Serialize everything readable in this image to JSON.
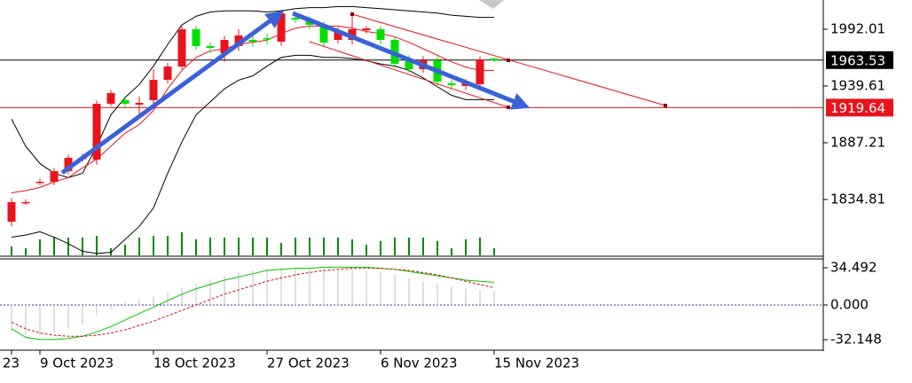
{
  "chart_data": {
    "type": "candlestick",
    "categories": [
      "23",
      null,
      "9 Oct 2023",
      null,
      null,
      null,
      null,
      null,
      null,
      null,
      "18 Oct 2023",
      null,
      null,
      null,
      null,
      null,
      null,
      null,
      "27 Oct 2023",
      null,
      null,
      null,
      null,
      null,
      null,
      null,
      "6 Nov 2023",
      null,
      null,
      null,
      null,
      null,
      null,
      null,
      "15 Nov 2023"
    ],
    "open": [
      1814.3,
      1832.4,
      1851.2,
      1851.2,
      1861.0,
      1873.3,
      1871.6,
      1923.2,
      1926.5,
      1922.4,
      1926.5,
      1945.3,
      1957.6,
      1992.0,
      1976.5,
      1969.9,
      1976.5,
      1982.2,
      1983.8,
      1980.5,
      2002.6,
      2001.0,
      1996.1,
      1982.2,
      1982.2,
      1991.2,
      1992.0,
      1982.2,
      1964.2,
      1955.2,
      1963.3,
      1942.1,
      1939.6,
      1941.2,
      1965.0
    ],
    "high": [
      1836,
      1835,
      1854,
      1864,
      1876,
      1877,
      1926,
      1936,
      1929,
      1930,
      1955,
      1961,
      1995,
      1995,
      1980,
      1986,
      1992,
      1986,
      1988,
      2010,
      2006,
      2004,
      1999,
      1994,
      2005.9,
      1995,
      1995,
      1985,
      1968,
      1967,
      1967,
      1945,
      1946,
      1967,
      1966
    ],
    "low": [
      1810,
      1830,
      1848,
      1848,
      1858,
      1870,
      1867,
      1921,
      1920,
      1914,
      1923,
      1942,
      1955,
      1973,
      1970,
      1962,
      1972,
      1976,
      1978,
      1977,
      1998,
      1992,
      1976,
      1979,
      1978,
      1988,
      1978,
      1956,
      1952,
      1952,
      1940,
      1937,
      1936,
      1938,
      1962
    ],
    "close": [
      1832.4,
      1832.4,
      1851.2,
      1861.0,
      1873.3,
      1873.3,
      1923.2,
      1933.1,
      1923.2,
      1924.0,
      1945.3,
      1957.6,
      1992.0,
      1976.5,
      1974.8,
      1982.2,
      1986.3,
      1980.5,
      1983.0,
      2006.7,
      2001.0,
      1996.1,
      1979.7,
      1990.4,
      1992.0,
      1992.8,
      1982.2,
      1960.1,
      1955.2,
      1963.3,
      1943.7,
      1940.4,
      1943.7,
      1964.2,
      1963.3
    ],
    "up_color": "#e8141c",
    "down_color": "#00e000",
    "bands": [
      {
        "color": "#000000",
        "values": [
          1909,
          1884,
          1868,
          1859,
          1855,
          1859,
          1884,
          1913,
          1929,
          1941,
          1958,
          1978,
          1996,
          2004,
          2008,
          2009,
          2009,
          2009,
          2008,
          2009,
          2011,
          2012,
          2012,
          2013,
          2013,
          2012,
          2011,
          2010,
          2009,
          2008,
          2007,
          2005,
          2004,
          2003,
          2003
        ]
      },
      {
        "color": "#e8141c",
        "values": [
          1841,
          1843,
          1846,
          1851,
          1855,
          1864,
          1872,
          1884,
          1896,
          1904,
          1917,
          1937,
          1954,
          1966,
          1972,
          1974,
          1978,
          1980,
          1982,
          1988,
          1993,
          1995,
          1995,
          1995,
          1993,
          1990,
          1988,
          1985,
          1980,
          1974,
          1968,
          1962,
          1957,
          1954,
          1954
        ]
      },
      {
        "color": "#000000",
        "values": [
          1800,
          1802,
          1805,
          1800,
          1794,
          1787,
          1785,
          1786,
          1798,
          1810,
          1827,
          1859,
          1888,
          1913,
          1925,
          1937,
          1945,
          1949,
          1958,
          1966,
          1968,
          1968,
          1966,
          1966,
          1965,
          1963,
          1960,
          1958,
          1954,
          1947,
          1939,
          1931,
          1927,
          1927,
          1927
        ]
      }
    ],
    "ylim": [
      1781.6,
      2019.03
    ],
    "yticks": [
      1992.01,
      1939.61,
      1887.21,
      1834.81
    ],
    "price_lines": [
      {
        "value": 1963.53,
        "color": "#000000"
      },
      {
        "value": 1919.64,
        "color": "#e8141c"
      }
    ],
    "volume": {
      "color": "#008c00",
      "ylim": [
        0,
        100
      ],
      "values": [
        10,
        8,
        18,
        20,
        20,
        20,
        22,
        8,
        12,
        20,
        22,
        22,
        26,
        18,
        20,
        20,
        20,
        20,
        20,
        14,
        20,
        20,
        20,
        20,
        18,
        12,
        16,
        20,
        20,
        20,
        16,
        8,
        18,
        20,
        8
      ]
    },
    "macd": {
      "ylim": [
        -41.9,
        42.7
      ],
      "yticks": [
        34.492,
        {
          "value": 0,
          "label": "0.000"
        },
        -32.148
      ],
      "histogram": {
        "color": "#c0c0c0",
        "values": [
          -25,
          -27,
          -28,
          -25,
          -22,
          -18,
          -10,
          -4,
          3,
          5,
          8,
          12,
          16,
          20,
          24,
          27,
          30,
          32,
          33,
          34,
          34,
          34,
          33,
          33,
          33,
          32,
          30,
          28,
          25,
          22,
          20,
          17,
          15,
          14,
          13
        ]
      },
      "lines": [
        {
          "color": "#00c800",
          "values": [
            -22,
            -30,
            -32,
            -32,
            -31,
            -29,
            -25,
            -20,
            -14,
            -8,
            -2,
            4,
            10,
            15,
            19,
            23,
            26,
            29,
            32,
            33,
            34,
            34,
            35,
            35,
            35,
            35,
            34,
            33,
            31,
            29,
            27,
            25,
            23,
            22,
            21
          ]
        },
        {
          "color": "#d01010",
          "dashed": true,
          "values": [
            -16,
            -22,
            -26,
            -28,
            -29,
            -29,
            -28,
            -26,
            -23,
            -19,
            -15,
            -10,
            -5,
            0,
            5,
            10,
            14,
            18,
            22,
            25,
            28,
            30,
            32,
            33,
            34,
            34,
            34,
            33,
            32,
            30,
            28,
            25,
            22,
            19,
            16
          ]
        }
      ]
    }
  }
}
